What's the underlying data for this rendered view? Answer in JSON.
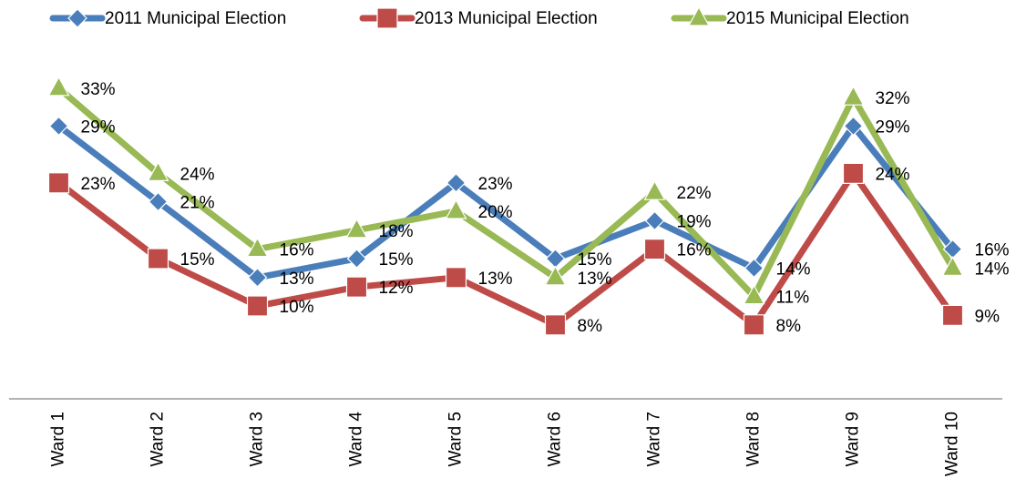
{
  "chart_data": {
    "type": "line",
    "categories": [
      "Ward 1",
      "Ward 2",
      "Ward 3",
      "Ward 4",
      "Ward 5",
      "Ward 6",
      "Ward 7",
      "Ward 8",
      "Ward 9",
      "Ward 10"
    ],
    "series": [
      {
        "name": "2011 Municipal Election",
        "color": "#4a7ebb",
        "marker": "diamond",
        "values": [
          29,
          21,
          13,
          15,
          23,
          15,
          19,
          14,
          29,
          16
        ],
        "value_labels": [
          "29%",
          "21%",
          "13%",
          "15%",
          "23%",
          "15%",
          "19%",
          "14%",
          "29%",
          "16%"
        ]
      },
      {
        "name": "2013 Municipal Election",
        "color": "#be4b48",
        "marker": "square",
        "values": [
          23,
          15,
          10,
          12,
          13,
          8,
          16,
          8,
          24,
          9
        ],
        "value_labels": [
          "23%",
          "15%",
          "10%",
          "12%",
          "13%",
          "8%",
          "16%",
          "8%",
          "24%",
          "9%"
        ]
      },
      {
        "name": "2015 Municipal Election",
        "color": "#98b954",
        "marker": "triangle",
        "values": [
          33,
          24,
          16,
          18,
          20,
          13,
          22,
          11,
          32,
          14
        ],
        "value_labels": [
          "33%",
          "24%",
          "16%",
          "18%",
          "20%",
          "13%",
          "22%",
          "11%",
          "32%",
          "14%"
        ]
      }
    ],
    "ylim": [
      0,
      35
    ],
    "legend": "top"
  }
}
